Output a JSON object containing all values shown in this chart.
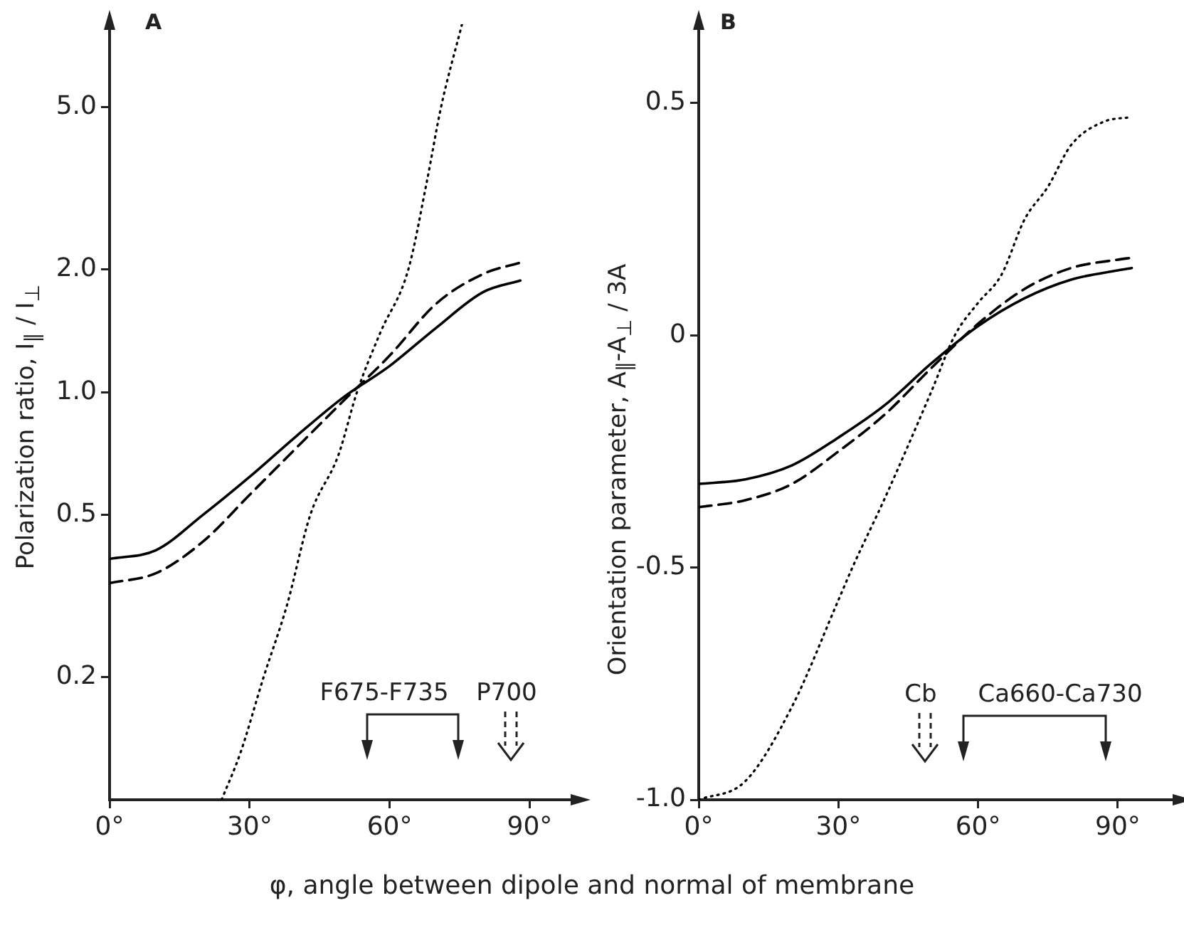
{
  "chart_data": [
    {
      "type": "line",
      "title": "A",
      "xlabel": "φ, angle between dipole and normal of membrane",
      "ylabel": "Polarization ratio, I$_{∥}$ / I$_{⊥}$",
      "log": "y",
      "marker": "none",
      "xlim": [
        0,
        100
      ],
      "xticks": [
        {
          "value": 0,
          "label": "0°"
        },
        {
          "value": 30,
          "label": "30°"
        },
        {
          "value": 60,
          "label": "60°"
        },
        {
          "value": 90,
          "label": "90°"
        }
      ],
      "ylim": [
        0.1,
        8
      ],
      "yticks": [
        {
          "value": 0.2,
          "label": "0.2"
        },
        {
          "value": 0.5,
          "label": "0.5"
        },
        {
          "value": 1,
          "label": "1.0"
        },
        {
          "value": 2,
          "label": "2.0"
        },
        {
          "value": 5,
          "label": "5.0"
        }
      ],
      "series": [
        {
          "color": "#000000",
          "line_style": "solid",
          "x": [
            0,
            10,
            20,
            30,
            40,
            50,
            60,
            70,
            80,
            88
          ],
          "values": [
            0.39,
            0.41,
            0.5,
            0.62,
            0.78,
            0.97,
            1.16,
            1.44,
            1.76,
            1.88
          ]
        },
        {
          "color": "#000000",
          "line_style": "dashed",
          "x": [
            0,
            10,
            20,
            30,
            40,
            50,
            60,
            70,
            80,
            88
          ],
          "values": [
            0.34,
            0.36,
            0.43,
            0.56,
            0.73,
            0.95,
            1.23,
            1.65,
            1.95,
            2.08
          ]
        },
        {
          "color": "#000000",
          "line_style": "dotted",
          "x": [
            24,
            28,
            33,
            38,
            43,
            49,
            53,
            58,
            64,
            68,
            71,
            75.5
          ],
          "values": [
            0.1,
            0.13,
            0.2,
            0.3,
            0.5,
            0.7,
            1,
            1.4,
            2,
            3.3,
            5,
            8
          ]
        }
      ],
      "annotations": [
        "F675-F735",
        "P700"
      ]
    },
    {
      "type": "line",
      "title": "B",
      "ylabel": "Orientation parameter, A$_{∥}$-A$_{⊥}$ / 3A",
      "marker": "none",
      "xlim": [
        0,
        103
      ],
      "xticks": [
        {
          "value": 0,
          "label": "0°"
        },
        {
          "value": 30,
          "label": "30°"
        },
        {
          "value": 60,
          "label": "60°"
        },
        {
          "value": 90,
          "label": "90°"
        }
      ],
      "ylim": [
        -1,
        0.67
      ],
      "yticks": [
        {
          "value": -1,
          "label": "-1.0"
        },
        {
          "value": -0.5,
          "label": "-0.5"
        },
        {
          "value": 0,
          "label": "0"
        },
        {
          "value": 0.5,
          "label": "0.5"
        }
      ],
      "series": [
        {
          "color": "#000000",
          "line_style": "solid",
          "x": [
            0,
            10,
            20,
            30,
            40,
            50,
            60,
            70,
            80,
            90,
            93
          ],
          "values": [
            -0.32,
            -0.31,
            -0.28,
            -0.22,
            -0.15,
            -0.06,
            0.02,
            0.08,
            0.12,
            0.14,
            0.145
          ]
        },
        {
          "color": "#000000",
          "line_style": "dashed",
          "x": [
            0,
            10,
            20,
            30,
            40,
            50,
            60,
            70,
            80,
            90,
            93
          ],
          "values": [
            -0.37,
            -0.355,
            -0.32,
            -0.25,
            -0.17,
            -0.07,
            0.025,
            0.1,
            0.145,
            0.163,
            0.167
          ]
        },
        {
          "color": "#000000",
          "line_style": "dotted",
          "x": [
            0,
            10,
            20,
            30,
            33,
            40,
            50,
            55,
            60,
            65,
            70,
            75,
            80,
            87,
            93
          ],
          "values": [
            -1,
            -0.96,
            -0.8,
            -0.57,
            -0.5,
            -0.35,
            -0.12,
            0,
            0.07,
            0.13,
            0.25,
            0.32,
            0.41,
            0.46,
            0.47
          ]
        }
      ],
      "annotations": [
        "Cb",
        "Ca660-Ca730"
      ]
    }
  ]
}
